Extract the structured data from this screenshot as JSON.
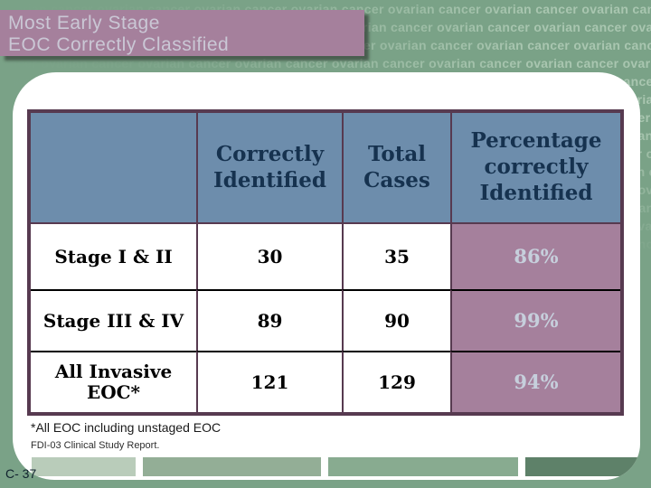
{
  "slide": {
    "title_lines": [
      "Most Early Stage",
      "EOC Correctly Classified"
    ],
    "watermark_text": "ovarian cancer",
    "page_number": "C- 37"
  },
  "table": {
    "headers": [
      "",
      "Correctly Identified",
      "Total Cases",
      "Percentage correctly Identified"
    ],
    "rows": [
      {
        "label": "Stage I & II",
        "correctly_identified": "30",
        "total_cases": "35",
        "percentage": "86%"
      },
      {
        "label": "Stage III & IV",
        "correctly_identified": "89",
        "total_cases": "90",
        "percentage": "99%"
      },
      {
        "label": "All Invasive EOC*",
        "correctly_identified": "121",
        "total_cases": "129",
        "percentage": "94%"
      }
    ]
  },
  "footnotes": {
    "asterisk": "*All EOC including unstaged EOC",
    "source": "FDI-03 Clinical Study Report."
  },
  "colors": {
    "background": "#7aa287",
    "watermark_text": "#a9c6b0",
    "title_box": "#a5809c",
    "title_text": "#cac7d5",
    "header_cell": "#6d8dac",
    "header_text": "#16324f",
    "percent_cell": "#a5809c",
    "percent_text": "#c6cfdc",
    "table_border": "#573a50",
    "footer_bars": [
      "#b9ccba",
      "#93ae96",
      "#88ab90",
      "#5e8169"
    ]
  }
}
